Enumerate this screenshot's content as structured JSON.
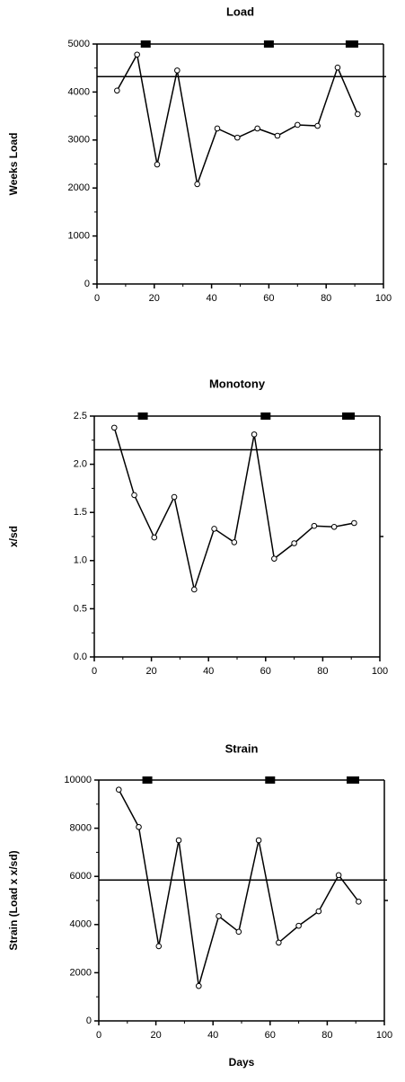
{
  "chart_data": [
    {
      "type": "line",
      "title": "Load",
      "ylabel": "Weeks  Load",
      "x": [
        7,
        14,
        21,
        28,
        35,
        42,
        49,
        56,
        63,
        70,
        77,
        84,
        91
      ],
      "values": [
        4030,
        4780,
        2490,
        4450,
        2080,
        3240,
        3050,
        3240,
        3090,
        3315,
        3295,
        4510,
        3540
      ],
      "xlim": [
        0,
        100
      ],
      "xticks": [
        0,
        20,
        40,
        60,
        80,
        100
      ],
      "ylim": [
        0,
        5000
      ],
      "yticks": [
        0,
        1000,
        2000,
        3000,
        4000,
        5000
      ],
      "reference_line": 4320,
      "markers_x": [
        17,
        60,
        89
      ],
      "color": "#000000"
    },
    {
      "type": "line",
      "title": "Monotony",
      "ylabel": "x/sd",
      "x": [
        7,
        14,
        21,
        28,
        35,
        42,
        49,
        56,
        63,
        70,
        77,
        84,
        91
      ],
      "values": [
        2.38,
        1.68,
        1.24,
        1.66,
        0.7,
        1.33,
        1.19,
        2.31,
        1.02,
        1.18,
        1.36,
        1.35,
        1.39
      ],
      "xlim": [
        0,
        100
      ],
      "xticks": [
        0,
        20,
        40,
        60,
        80,
        100
      ],
      "ylim": [
        0,
        2.5
      ],
      "yticks": [
        {
          "value": 0,
          "label": "0.0"
        },
        0.5,
        {
          "value": 1,
          "label": "1.0"
        },
        1.5,
        {
          "value": 2,
          "label": "2.0"
        },
        2.5
      ],
      "reference_line": 2.15,
      "markers_x": [
        17,
        60,
        89
      ],
      "color": "#000000"
    },
    {
      "type": "line",
      "title": "Strain",
      "ylabel": "Strain (Load x x/sd)",
      "xlabel": "Days",
      "x": [
        7,
        14,
        21,
        28,
        35,
        42,
        49,
        56,
        63,
        70,
        77,
        84,
        91
      ],
      "values": [
        9600,
        8050,
        3100,
        7500,
        1450,
        4350,
        3700,
        7500,
        3250,
        3950,
        4550,
        6050,
        4950
      ],
      "xlim": [
        0,
        100
      ],
      "xticks": [
        0,
        20,
        40,
        60,
        80,
        100
      ],
      "ylim": [
        0,
        10000
      ],
      "yticks": [
        0,
        2000,
        4000,
        6000,
        8000,
        10000
      ],
      "reference_line": 5850,
      "markers_x": [
        17,
        60,
        89
      ],
      "color": "#000000"
    }
  ]
}
